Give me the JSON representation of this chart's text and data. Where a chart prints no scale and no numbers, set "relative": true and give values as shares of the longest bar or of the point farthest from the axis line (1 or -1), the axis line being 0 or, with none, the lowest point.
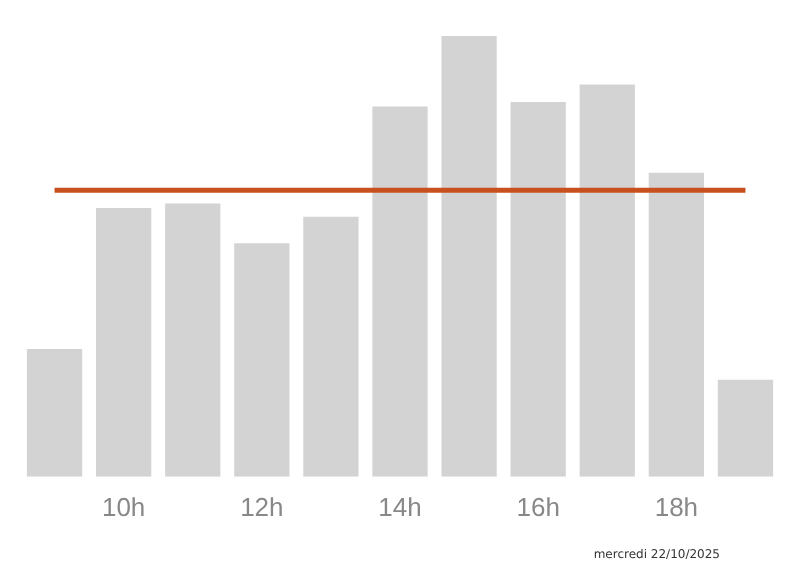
{
  "chart_data": {
    "type": "bar",
    "relative": true,
    "categories": [
      null,
      "10h",
      null,
      "12h",
      null,
      "14h",
      null,
      "16h",
      null,
      "18h",
      null
    ],
    "values": [
      0.29,
      0.61,
      0.62,
      0.53,
      0.59,
      0.84,
      1,
      0.85,
      0.89,
      0.69,
      0.22
    ],
    "color": "#d3d3d3",
    "ref_lines": [
      {
        "axis": "y",
        "value": 0.65,
        "color": "#c8501e"
      }
    ],
    "grid": false,
    "legend": false,
    "annotations": [
      "mercredi 22/10/2025"
    ]
  }
}
